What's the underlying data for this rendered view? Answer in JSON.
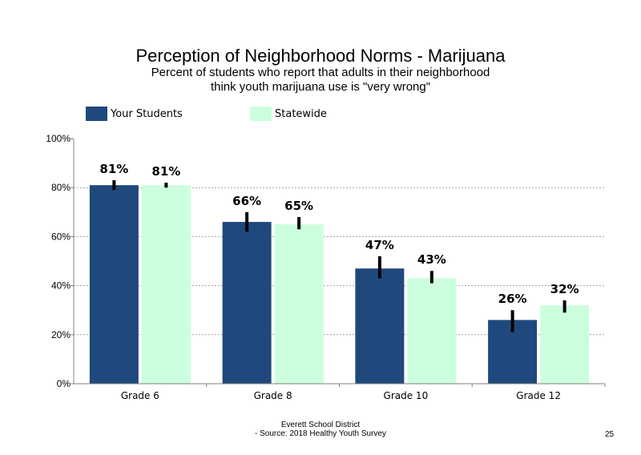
{
  "chart_data": {
    "type": "bar",
    "title": "Perception of Neighborhood Norms - Marijuana",
    "subtitle_lines": [
      "Percent of students who report that adults in their neighborhood",
      "think youth marijuana use is \"very wrong\""
    ],
    "categories": [
      "Grade 6",
      "Grade 8",
      "Grade 10",
      "Grade 12"
    ],
    "series": [
      {
        "name": "Your Students",
        "color": "#1f497d",
        "values": [
          81,
          66,
          47,
          26
        ],
        "labels": [
          "81%",
          "66%",
          "47%",
          "26%"
        ],
        "error_low": [
          79,
          62,
          43,
          21
        ],
        "error_high": [
          83,
          70,
          52,
          30
        ]
      },
      {
        "name": "Statewide",
        "color": "#ccffdd",
        "values": [
          81,
          65,
          43,
          32
        ],
        "labels": [
          "81%",
          "65%",
          "43%",
          "32%"
        ],
        "error_low": [
          80,
          63,
          41,
          29
        ],
        "error_high": [
          82,
          68,
          46,
          34
        ]
      }
    ],
    "ylim": [
      0,
      100
    ],
    "yticks": [
      0,
      20,
      40,
      60,
      80,
      100
    ],
    "ytick_labels": [
      "0%",
      "20%",
      "40%",
      "60%",
      "80%",
      "100%"
    ],
    "grid": true,
    "legend_position": "top"
  },
  "footer": {
    "line1": "Everett School District",
    "line2": "- Source: 2018 Healthy Youth Survey"
  },
  "page_number": "25"
}
